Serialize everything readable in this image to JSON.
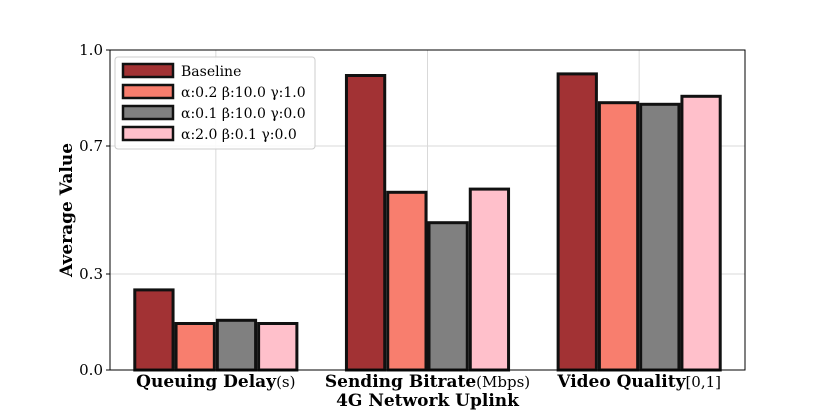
{
  "chart_data": {
    "type": "bar",
    "xlabel": "4G Network Uplink",
    "ylabel": "Average Value",
    "ylim": [
      0,
      1.0
    ],
    "yticks": [
      "0.0",
      "0.3",
      "0.7",
      "1.0"
    ],
    "ytick_values": [
      0.0,
      0.3,
      0.7,
      1.0
    ],
    "grid": true,
    "legend_position": "top-left",
    "categories": [
      {
        "bold": "Queuing Delay",
        "unit": "(s)"
      },
      {
        "bold": "Sending Bitrate",
        "unit": "(Mbps)"
      },
      {
        "bold": "Video Quality",
        "unit": "[0,1]"
      }
    ],
    "series": [
      {
        "name": "Baseline",
        "color": "#A23234",
        "values": [
          0.255,
          0.925,
          0.93
        ]
      },
      {
        "name": "α:0.2 β:10.0 γ:1.0",
        "color": "#F87E6E",
        "values": [
          0.15,
          0.56,
          0.84
        ]
      },
      {
        "name": "α:0.1 β:10.0 γ:0.0",
        "color": "#808080",
        "values": [
          0.16,
          0.465,
          0.835
        ]
      },
      {
        "name": "α:2.0 β:0.1 γ:0.0",
        "color": "#FFC0CB",
        "values": [
          0.15,
          0.57,
          0.86
        ]
      }
    ]
  }
}
